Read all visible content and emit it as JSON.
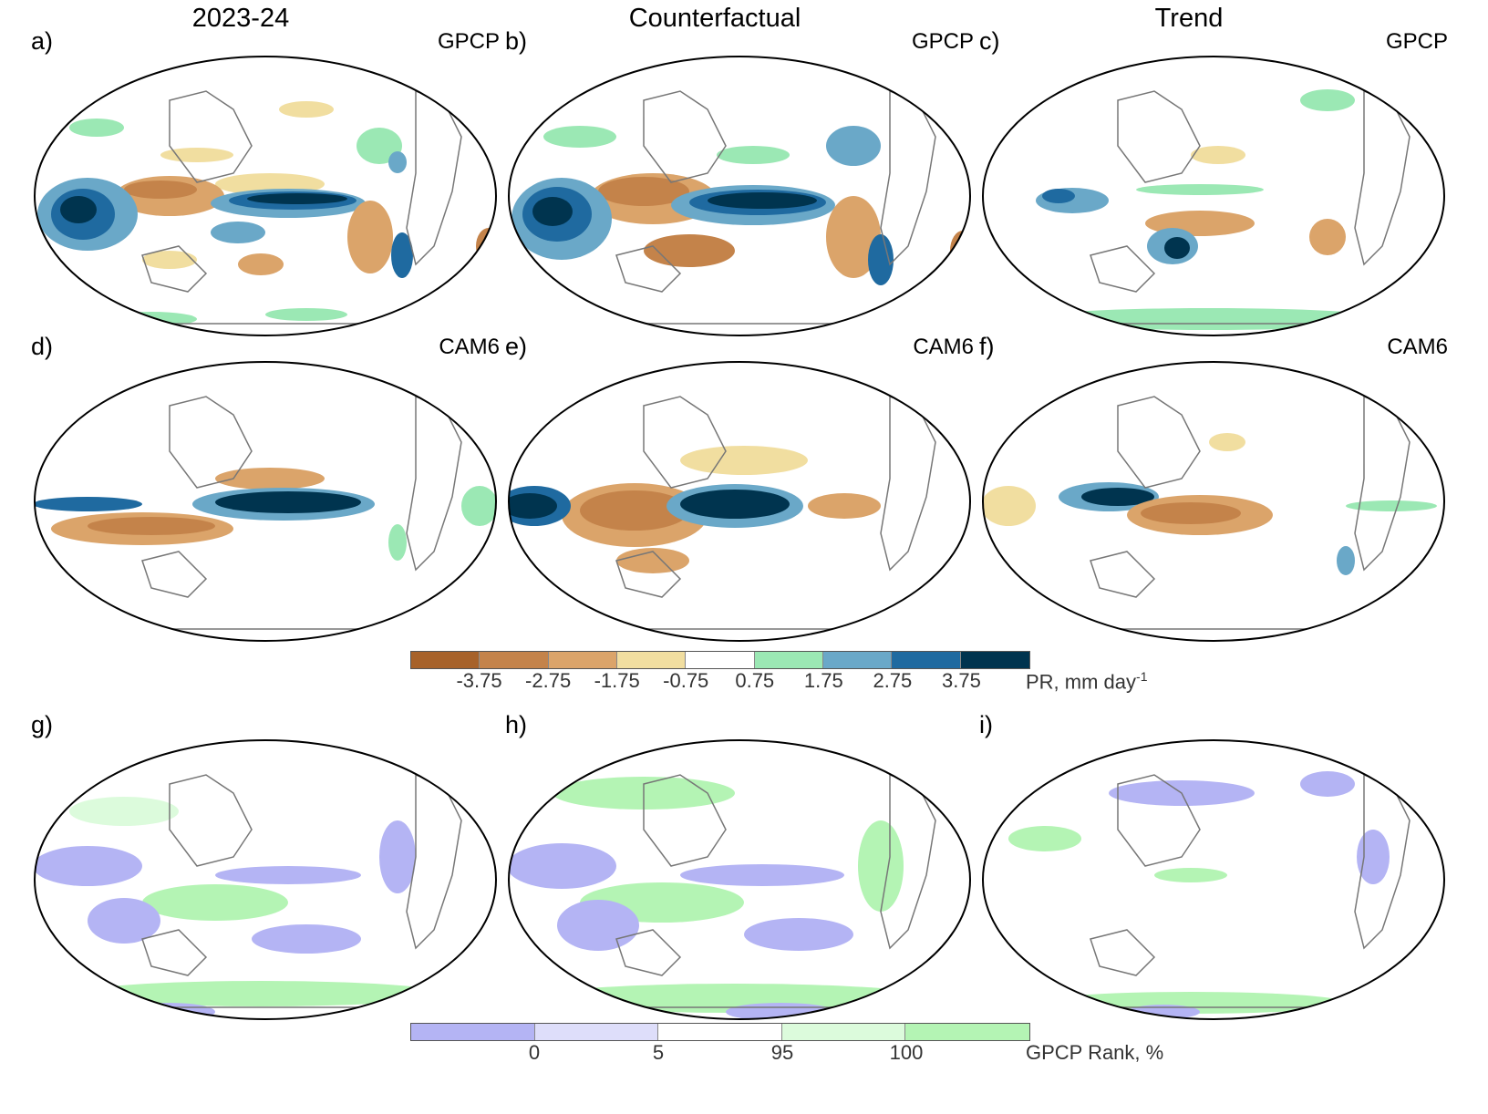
{
  "column_titles": [
    "2023-24",
    "Counterfactual",
    "Trend"
  ],
  "panels": {
    "a": {
      "letter": "a)",
      "source": "GPCP"
    },
    "b": {
      "letter": "b)",
      "source": "GPCP"
    },
    "c": {
      "letter": "c)",
      "source": "GPCP"
    },
    "d": {
      "letter": "d)",
      "source": "CAM6"
    },
    "e": {
      "letter": "e)",
      "source": "CAM6"
    },
    "f": {
      "letter": "f)",
      "source": "CAM6"
    },
    "g": {
      "letter": "g)",
      "source": ""
    },
    "h": {
      "letter": "h)",
      "source": ""
    },
    "i": {
      "letter": "i)",
      "source": ""
    }
  },
  "pr_colorbar": {
    "colors": [
      "#a7622a",
      "#c4834a",
      "#dba46a",
      "#f1dea0",
      "#ffffff",
      "#9be8b4",
      "#6aa8c8",
      "#1f6aa0",
      "#00344f"
    ],
    "ticks": [
      "-3.75",
      "-2.75",
      "-1.75",
      "-0.75",
      "0.75",
      "1.75",
      "2.75",
      "3.75"
    ],
    "label": "PR, mm day",
    "label_sup": "-1"
  },
  "rank_colorbar": {
    "colors": [
      "#b4b4f4",
      "#dedefa",
      "#ffffff",
      "#dcfbdc",
      "#b4f4b4"
    ],
    "ticks": [
      "0",
      "5",
      "95",
      "100"
    ],
    "label": "GPCP Rank, %"
  },
  "chart_data": {
    "type": "heatmap",
    "projection": "Winkel-Tripel-like global map, Pacific-centered",
    "rows": [
      "GPCP precipitation anomaly",
      "CAM6 precipitation anomaly",
      "GPCP rank percentile"
    ]
  }
}
